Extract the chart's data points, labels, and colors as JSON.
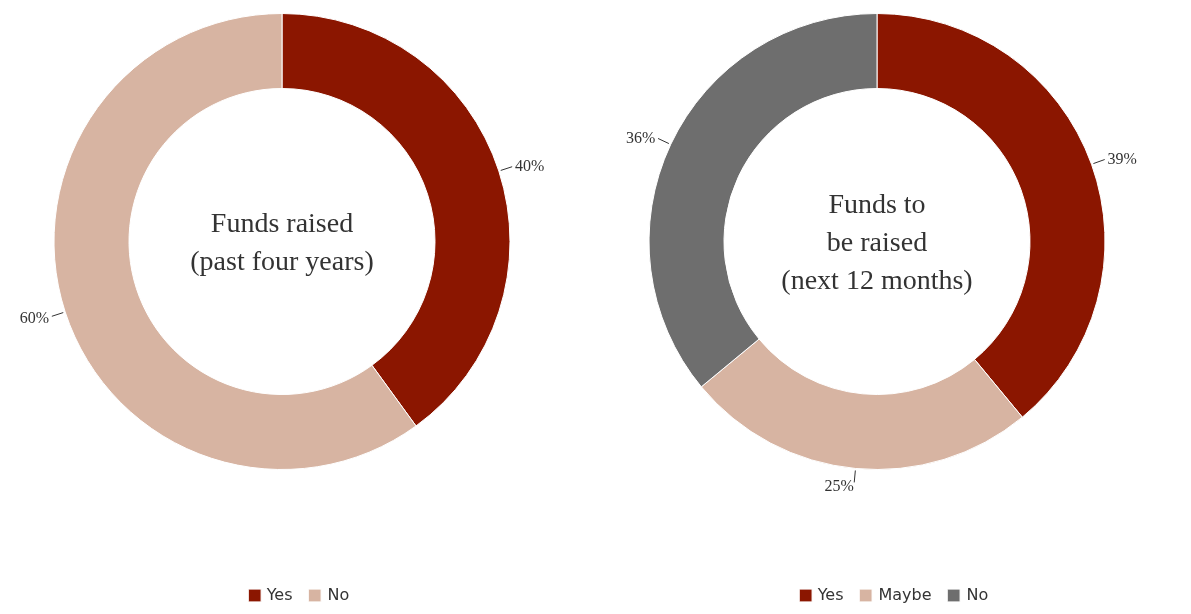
{
  "chart_data": [
    {
      "type": "donut",
      "title": "Funds raised\n(past four years)",
      "categories": [
        "Yes",
        "No"
      ],
      "values": [
        40,
        60
      ],
      "colors": [
        "#8b1600",
        "#d7b4a2"
      ],
      "value_labels": [
        "40%",
        "60%"
      ],
      "legend": "bottom"
    },
    {
      "type": "donut",
      "title": "Funds to\nbe raised\n(next 12 months)",
      "categories": [
        "Yes",
        "Maybe",
        "No"
      ],
      "values": [
        39,
        25,
        36
      ],
      "colors": [
        "#8b1600",
        "#d7b4a2",
        "#6e6e6e"
      ],
      "value_labels": [
        "39%",
        "25%",
        "36%"
      ],
      "legend": "bottom"
    }
  ]
}
